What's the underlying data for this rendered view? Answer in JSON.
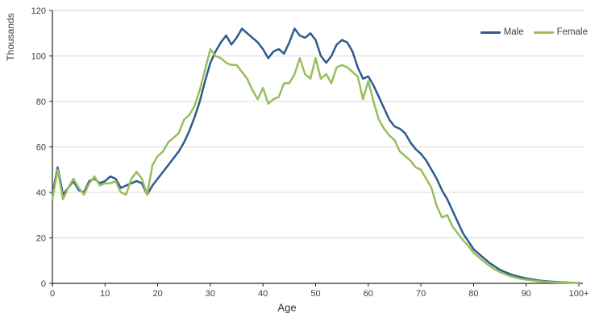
{
  "chart_data": {
    "type": "line",
    "title": "",
    "xlabel": "Age",
    "ylabel": "Thousands",
    "xlim": [
      0,
      100
    ],
    "ylim": [
      0,
      120
    ],
    "grid": "horizontal",
    "legend_position": "top-right",
    "x_tick_values": [
      0,
      10,
      20,
      30,
      40,
      50,
      60,
      70,
      80,
      90,
      100
    ],
    "x_tick_labels": [
      "0",
      "10",
      "20",
      "30",
      "40",
      "50",
      "60",
      "70",
      "80",
      "90",
      "100+"
    ],
    "y_tick_values": [
      0,
      20,
      40,
      60,
      80,
      100,
      120
    ],
    "y_tick_labels": [
      "0",
      "20",
      "40",
      "60",
      "80",
      "100",
      "120"
    ],
    "age_start": 0,
    "age_step": 1,
    "series": [
      {
        "name": "Male",
        "color": "#2e5b8c",
        "values": [
          39,
          51,
          39,
          42,
          45,
          41,
          40,
          45,
          46,
          44,
          45,
          47,
          46,
          42,
          43,
          44,
          45,
          44,
          39,
          43,
          46,
          49,
          52,
          55,
          58,
          62,
          67,
          73,
          80,
          89,
          97,
          102,
          106,
          109,
          105,
          108,
          112,
          110,
          108,
          106,
          103,
          99,
          102,
          103,
          101,
          106,
          112,
          109,
          108,
          110,
          107,
          100,
          97,
          100,
          105,
          107,
          106,
          102,
          95,
          90,
          91,
          87,
          82,
          77,
          72,
          69,
          68,
          66,
          62,
          59,
          57,
          54,
          50,
          46,
          41,
          37,
          32,
          27,
          22,
          18.5,
          15,
          13,
          11,
          9,
          7.5,
          6,
          5,
          4,
          3.3,
          2.7,
          2.2,
          1.8,
          1.4,
          1.1,
          0.9,
          0.7,
          0.55,
          0.45,
          0.35,
          0.3,
          0.25
        ]
      },
      {
        "name": "Female",
        "color": "#97be5c",
        "values": [
          37,
          50,
          37,
          42,
          46,
          42,
          39,
          44,
          47,
          43,
          44,
          44,
          45,
          40,
          39,
          46,
          49,
          46,
          39,
          52,
          56,
          58,
          62,
          64,
          66,
          72,
          74,
          78,
          85,
          94,
          103,
          100,
          99,
          97,
          96,
          96,
          93,
          90,
          85,
          81,
          86,
          79,
          81,
          82,
          88,
          88,
          92,
          99,
          92,
          90,
          99,
          90,
          92,
          88,
          95,
          96,
          95,
          93,
          91,
          81,
          89,
          80,
          72,
          68,
          65,
          63,
          58,
          56,
          54,
          51,
          50,
          46,
          42,
          34,
          29,
          30,
          25,
          22,
          19,
          16.5,
          13.5,
          11.5,
          9.5,
          7.8,
          6.2,
          5,
          4,
          3.2,
          2.5,
          2,
          1.6,
          1.3,
          1,
          0.8,
          0.65,
          0.5,
          0.4,
          0.35,
          0.3,
          0.25,
          0.2
        ]
      }
    ],
    "style": {
      "axis_color": "#262626",
      "grid_color": "#d9d9d9",
      "tick_text_color": "#404040",
      "line_width": 2.5
    }
  }
}
